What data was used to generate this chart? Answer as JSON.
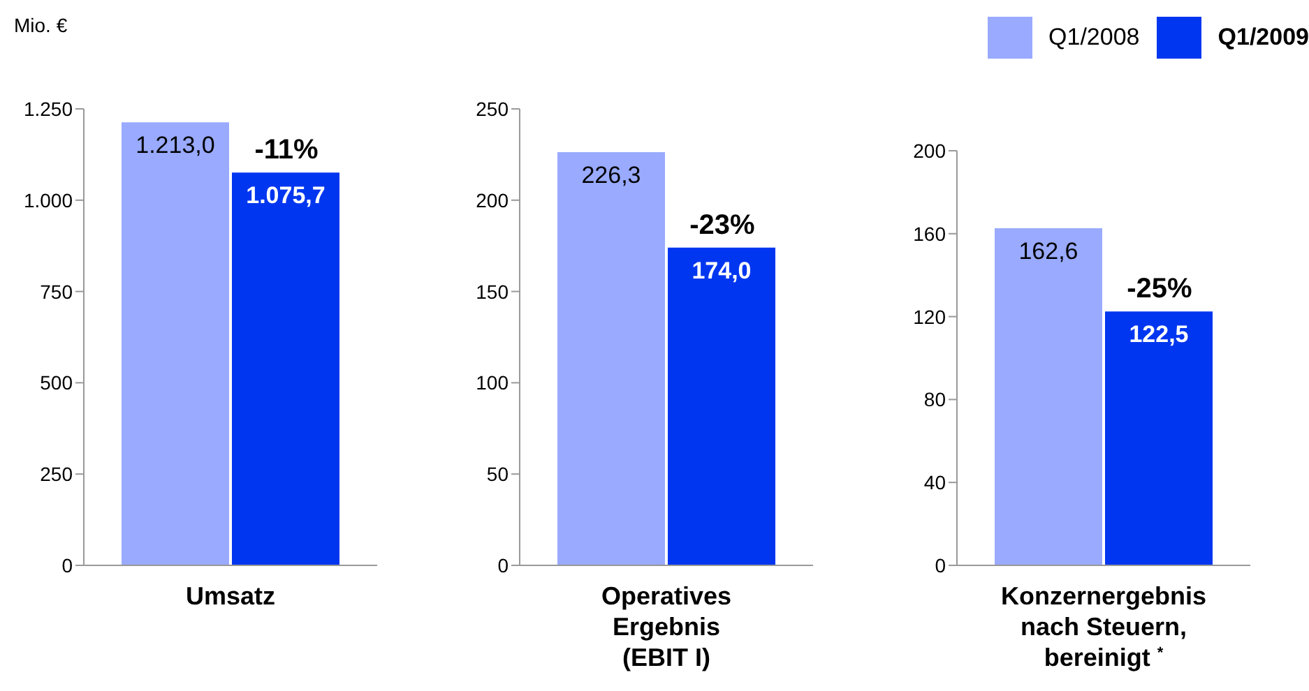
{
  "chart_data": [
    {
      "type": "bar",
      "ylabel": "Mio. €",
      "categories": [
        "Umsatz"
      ],
      "series": [
        {
          "color": "#99aaff",
          "values": [
            1213.0
          ],
          "value_labels": [
            "1.213,0"
          ]
        },
        {
          "color": "#0036f0",
          "values": [
            1075.7
          ],
          "value_labels": [
            "1.075,7"
          ]
        }
      ],
      "ylim": [
        0,
        1250
      ],
      "yticks": [
        0,
        250,
        500,
        750,
        {
          "value": 1000,
          "label": "1.000"
        },
        {
          "value": 1250,
          "label": "1.250"
        }
      ],
      "annotations": [
        {
          "text": "-11%",
          "x": "Umsatz",
          "y": 1075.7
        }
      ]
    },
    {
      "type": "bar",
      "categories": [
        "Operatives Ergebnis (EBIT I)"
      ],
      "series": [
        {
          "color": "#99aaff",
          "values": [
            226.3
          ],
          "value_labels": [
            "226,3"
          ]
        },
        {
          "color": "#0036f0",
          "values": [
            174.0
          ],
          "value_labels": [
            "174,0"
          ]
        }
      ],
      "ylim": [
        0,
        250
      ],
      "yticks": [
        0,
        50,
        100,
        150,
        200,
        250
      ],
      "annotations": [
        {
          "text": "-23%",
          "x": "Operatives Ergebnis (EBIT I)",
          "y": 174.0
        }
      ]
    },
    {
      "type": "bar",
      "categories": [
        "Konzernergebnis nach Steuern, bereinigt $^{*}$"
      ],
      "series": [
        {
          "name": "Q1/2008",
          "color": "#99aaff",
          "values": [
            162.6
          ],
          "value_labels": [
            "162,6"
          ]
        },
        {
          "name": "Q1/2009",
          "color": "#0036f0",
          "values": [
            122.5
          ],
          "value_labels": [
            "122,5"
          ]
        }
      ],
      "ylim": [
        0,
        200
      ],
      "yticks": [
        0,
        40,
        80,
        120,
        160,
        200
      ],
      "legend": "top right",
      "annotations": [
        {
          "text": "-25%",
          "x": "Konzernergebnis nach Steuern, bereinigt $^{*}$",
          "y": 122.5
        }
      ]
    }
  ]
}
